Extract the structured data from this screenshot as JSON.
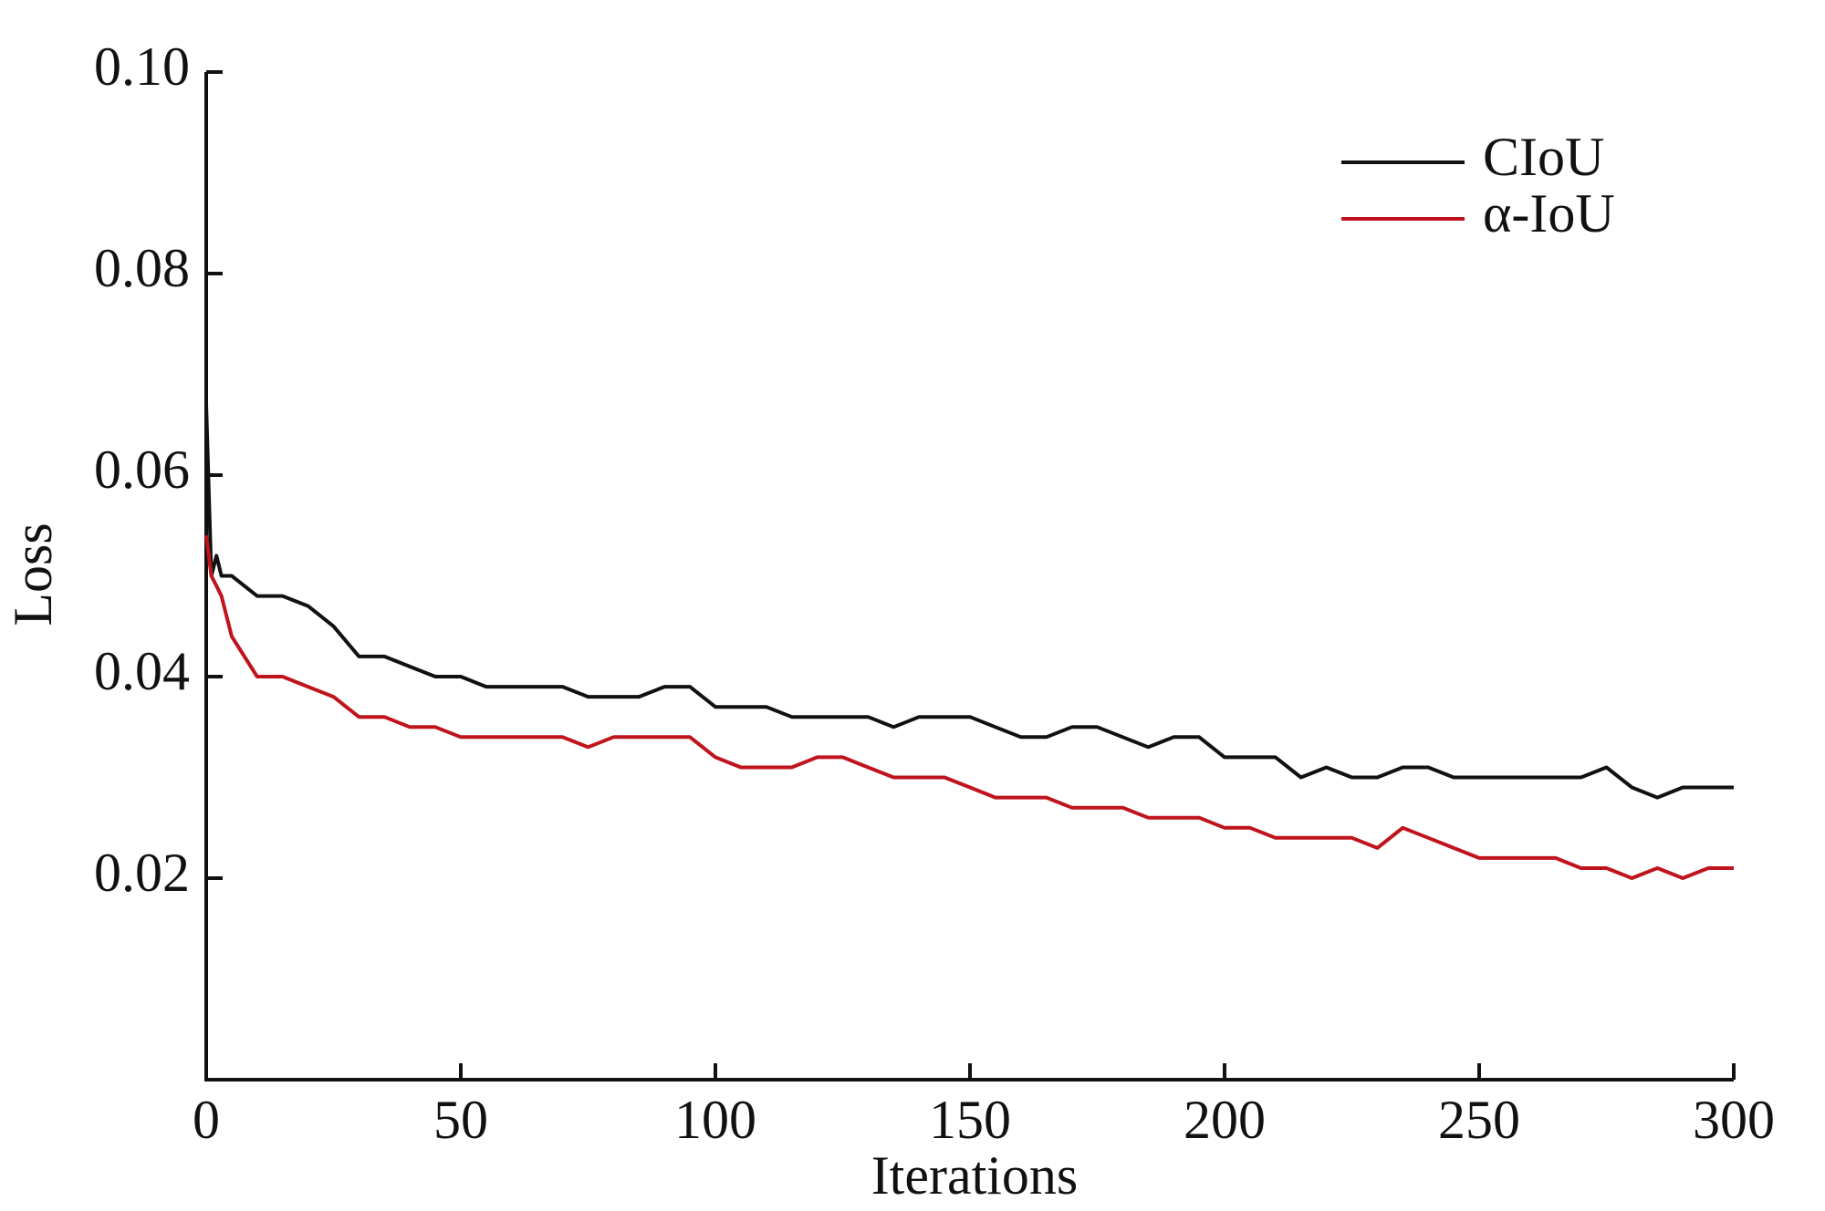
{
  "chart_data": {
    "type": "line",
    "x_label": "Iterations",
    "y_label": "Loss",
    "x": [
      0,
      1,
      2,
      3,
      5,
      10,
      15,
      20,
      25,
      30,
      35,
      40,
      45,
      50,
      55,
      60,
      65,
      70,
      75,
      80,
      85,
      90,
      95,
      100,
      105,
      110,
      115,
      120,
      125,
      130,
      135,
      140,
      145,
      150,
      155,
      160,
      165,
      170,
      175,
      180,
      185,
      190,
      195,
      200,
      205,
      210,
      215,
      220,
      225,
      230,
      235,
      240,
      245,
      250,
      255,
      260,
      265,
      270,
      275,
      280,
      285,
      290,
      295,
      300
    ],
    "series": [
      {
        "name": "CIoU",
        "color": "#111111",
        "values": [
          0.067,
          0.05,
          0.052,
          0.05,
          0.05,
          0.048,
          0.048,
          0.047,
          0.045,
          0.042,
          0.042,
          0.041,
          0.04,
          0.04,
          0.039,
          0.039,
          0.039,
          0.039,
          0.038,
          0.038,
          0.038,
          0.039,
          0.039,
          0.037,
          0.037,
          0.037,
          0.036,
          0.036,
          0.036,
          0.036,
          0.035,
          0.036,
          0.036,
          0.036,
          0.035,
          0.034,
          0.034,
          0.035,
          0.035,
          0.034,
          0.033,
          0.034,
          0.034,
          0.032,
          0.032,
          0.032,
          0.03,
          0.031,
          0.03,
          0.03,
          0.031,
          0.031,
          0.03,
          0.03,
          0.03,
          0.03,
          0.03,
          0.03,
          0.031,
          0.029,
          0.028,
          0.029,
          0.029,
          0.029
        ]
      },
      {
        "name": "α-IoU",
        "color": "#c0141c",
        "values": [
          0.054,
          0.05,
          0.049,
          0.048,
          0.044,
          0.04,
          0.04,
          0.039,
          0.038,
          0.036,
          0.036,
          0.035,
          0.035,
          0.034,
          0.034,
          0.034,
          0.034,
          0.034,
          0.033,
          0.034,
          0.034,
          0.034,
          0.034,
          0.032,
          0.031,
          0.031,
          0.031,
          0.032,
          0.032,
          0.031,
          0.03,
          0.03,
          0.03,
          0.029,
          0.028,
          0.028,
          0.028,
          0.027,
          0.027,
          0.027,
          0.026,
          0.026,
          0.026,
          0.025,
          0.025,
          0.024,
          0.024,
          0.024,
          0.024,
          0.023,
          0.025,
          0.024,
          0.023,
          0.022,
          0.022,
          0.022,
          0.022,
          0.021,
          0.021,
          0.02,
          0.021,
          0.02,
          0.021,
          0.021
        ]
      }
    ],
    "xlim": [
      0,
      300
    ],
    "xticks": [
      0,
      50,
      100,
      150,
      200,
      250,
      300
    ],
    "ylim": [
      0,
      0.1
    ],
    "yticks": [
      0.02,
      0.04,
      0.06,
      0.08,
      {
        "value": 0.1,
        "label": "0.10"
      }
    ],
    "grid": false,
    "legend": "upper right"
  }
}
